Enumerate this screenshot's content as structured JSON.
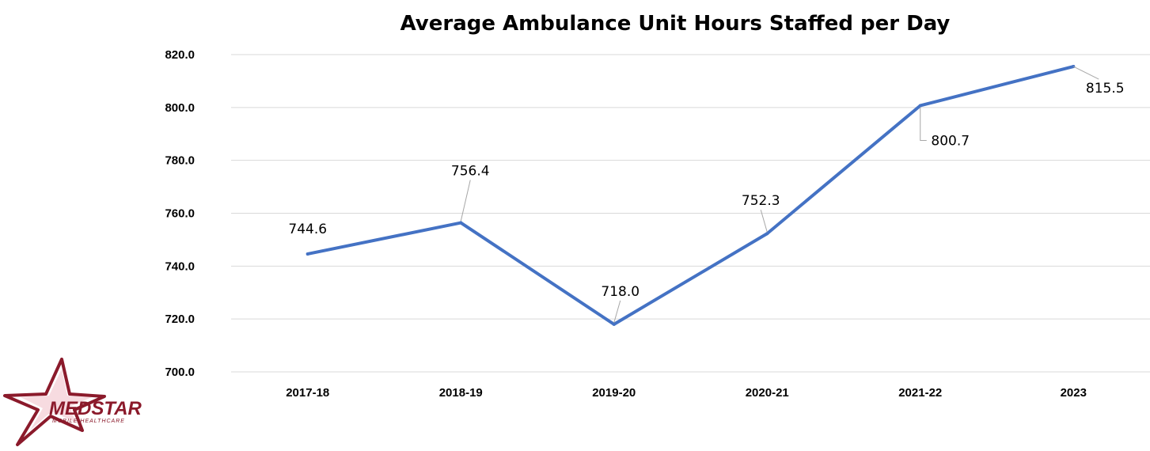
{
  "chart_data": {
    "type": "line",
    "title": "Average Ambulance Unit Hours Staffed per Day",
    "categories": [
      "2017-18",
      "2018-19",
      "2019-20",
      "2020-21",
      "2021-22",
      "2023"
    ],
    "series": [
      {
        "values": [
          744.6,
          756.4,
          718.0,
          752.3,
          800.7,
          815.5
        ]
      }
    ],
    "data_labels": [
      "744.6",
      "756.4",
      "718.0",
      "752.3",
      "800.7",
      "815.5"
    ],
    "ylim": [
      700,
      820
    ],
    "yticks": [
      "700.0",
      "720.0",
      "740.0",
      "760.0",
      "780.0",
      "800.0",
      "820.0"
    ],
    "grid": true,
    "legend": "none",
    "colors": {
      "line": "#4472c4",
      "grid": "#d9d9d9",
      "leader": "#a6a6a6"
    }
  },
  "logo": {
    "name": "MEDSTAR",
    "tagline": "MOBILE HEALTHCARE",
    "colors": {
      "primary": "#8b1a2b",
      "secondary": "#c8102e"
    }
  }
}
